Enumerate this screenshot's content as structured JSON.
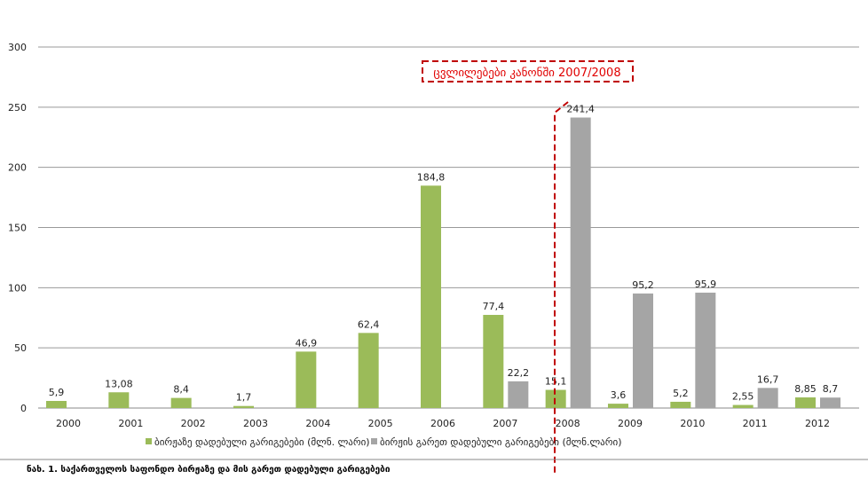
{
  "chart_data": {
    "type": "bar",
    "categories": [
      "2000",
      "2001",
      "2002",
      "2003",
      "2004",
      "2005",
      "2006",
      "2007",
      "2008",
      "2009",
      "2010",
      "2011",
      "2012"
    ],
    "series": [
      {
        "name": "ბირჟაზე დადებული გარიგებები (მლნ. ლარი)",
        "color": "#9bbb59",
        "values": [
          5.9,
          13.08,
          8.4,
          1.7,
          46.9,
          62.4,
          184.8,
          77.4,
          15.1,
          3.6,
          5.2,
          2.55,
          8.85
        ],
        "labels": [
          "5,9",
          "13,08",
          "8,4",
          "1,7",
          "46,9",
          "62,4",
          "184,8",
          "77,4",
          "15,1",
          "3,6",
          "5,2",
          "2,55",
          "8,85"
        ]
      },
      {
        "name": "ბირჟის გარეთ დადებული გარიგებები (მლნ.ლარი)",
        "color": "#a5a5a5",
        "values": [
          null,
          null,
          null,
          null,
          null,
          null,
          null,
          22.2,
          241.4,
          95.2,
          95.9,
          16.7,
          8.7
        ],
        "labels": [
          "",
          "",
          "",
          "",
          "",
          "",
          "",
          "22,2",
          "241,4",
          "95,2",
          "95,9",
          "16,7",
          "8,7"
        ]
      }
    ],
    "ylim": [
      0,
      300
    ],
    "yticks": [
      0,
      50,
      100,
      150,
      200,
      250,
      300
    ],
    "grid": true,
    "legend": "bottom",
    "annotation": "ცვლილებები კანონში 2007/2008",
    "annotation_color": "#c00000",
    "caption": "ნახ. 1. საქართველოს საფონდო ბირჟაზე  და მის გარეთ დადებული  გარიგებები"
  }
}
